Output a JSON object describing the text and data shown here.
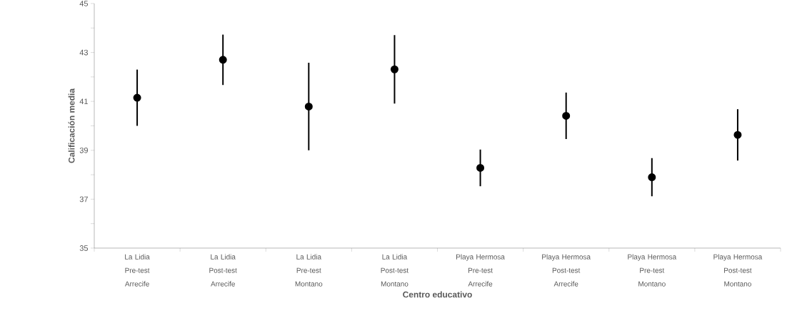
{
  "chart_data": {
    "type": "scatter",
    "xlabel": "Centro educativo",
    "ylabel": "Calificación media",
    "categories": [
      "La Lidia Pre-test Arrecife",
      "La Lidia Post-test Arrecife",
      "La Lidia Pre-test Montano",
      "La Lidia Post-test Montano",
      "Playa Hermosa Pre-test Arrecife",
      "Playa Hermosa Post-test Arrecife",
      "Playa Hermosa Pre-test Montano",
      "Playa Hermosa Post-test Montano"
    ],
    "values": [
      41.15,
      42.7,
      40.79,
      42.31,
      38.28,
      40.41,
      37.9,
      39.63
    ],
    "errors": [
      1.15,
      1.03,
      1.79,
      1.4,
      0.75,
      0.95,
      0.78,
      1.05
    ],
    "color": "#000000",
    "ylim": [
      35,
      45
    ],
    "yticks": [
      35,
      {
        "value": 36,
        "label": null
      },
      37,
      {
        "value": 38,
        "label": null
      },
      39,
      {
        "value": 40,
        "label": null
      },
      41,
      {
        "value": 42,
        "label": null
      },
      43,
      {
        "value": 44,
        "label": null
      },
      45
    ],
    "grid": false
  }
}
